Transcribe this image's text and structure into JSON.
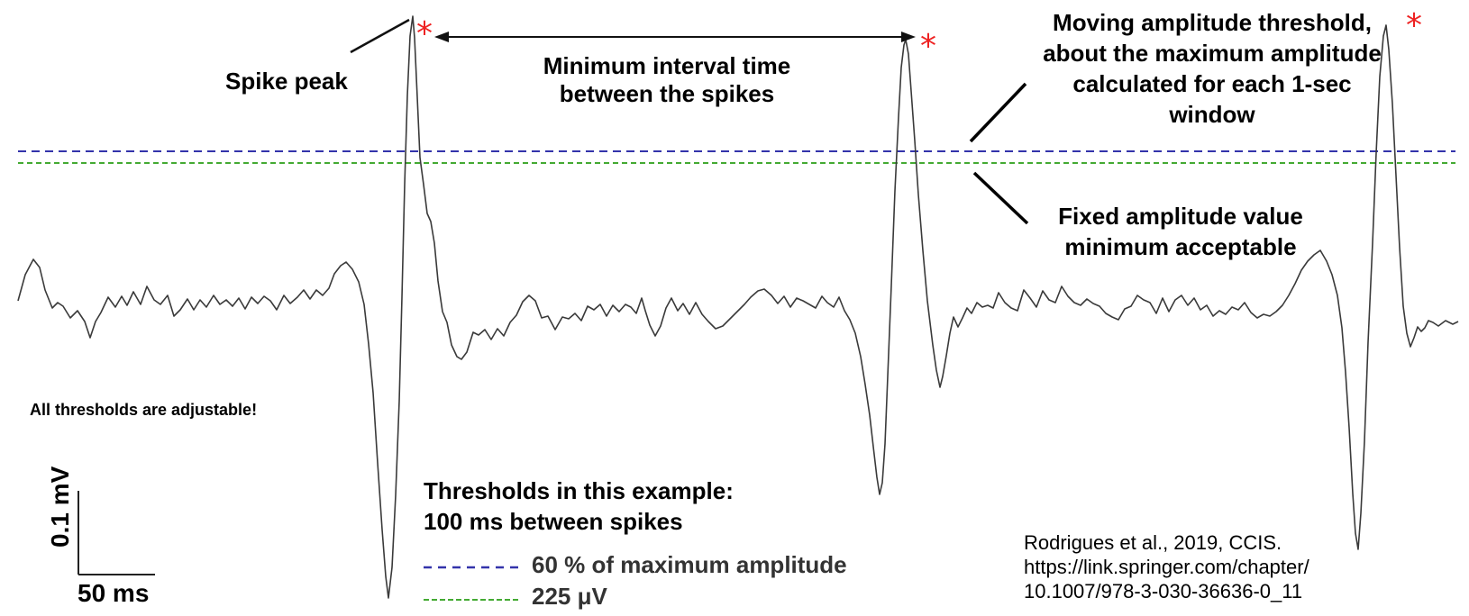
{
  "colors": {
    "trace": "#3a3a3a",
    "moving_threshold": "#3333aa",
    "fixed_threshold": "#44aa33",
    "spike_marker": "#ee2222",
    "text": "#000000"
  },
  "annotations": {
    "spike_peak": "Spike peak",
    "interval_line1": "Minimum interval time",
    "interval_line2": "between the spikes",
    "moving_line1": "Moving amplitude threshold,",
    "moving_line2": "about the maximum amplitude",
    "moving_line3": "calculated for each 1-sec",
    "moving_line4": "window",
    "fixed_line1": "Fixed amplitude value",
    "fixed_line2": "minimum acceptable",
    "adjustable": "All thresholds are adjustable!",
    "example_heading1": "Thresholds in this example:",
    "example_heading2": "100 ms between spikes"
  },
  "legend": [
    {
      "label": "60 % of maximum amplitude",
      "style": "dashed",
      "color": "#3333aa"
    },
    {
      "label": "225 μV",
      "style": "dashed",
      "color": "#44aa33"
    }
  ],
  "scale_bar": {
    "vertical": "0.1 mV",
    "horizontal": "50 ms"
  },
  "citation": {
    "line1": "Rodrigues et al., 2019, CCIS.",
    "line2": "https://link.springer.com/chapter/",
    "line3": "10.1007/978-3-030-36636-0_11"
  },
  "icons": {
    "spike_marker": "asterisk-icon",
    "interval_arrow": "double-headed-arrow-icon"
  }
}
